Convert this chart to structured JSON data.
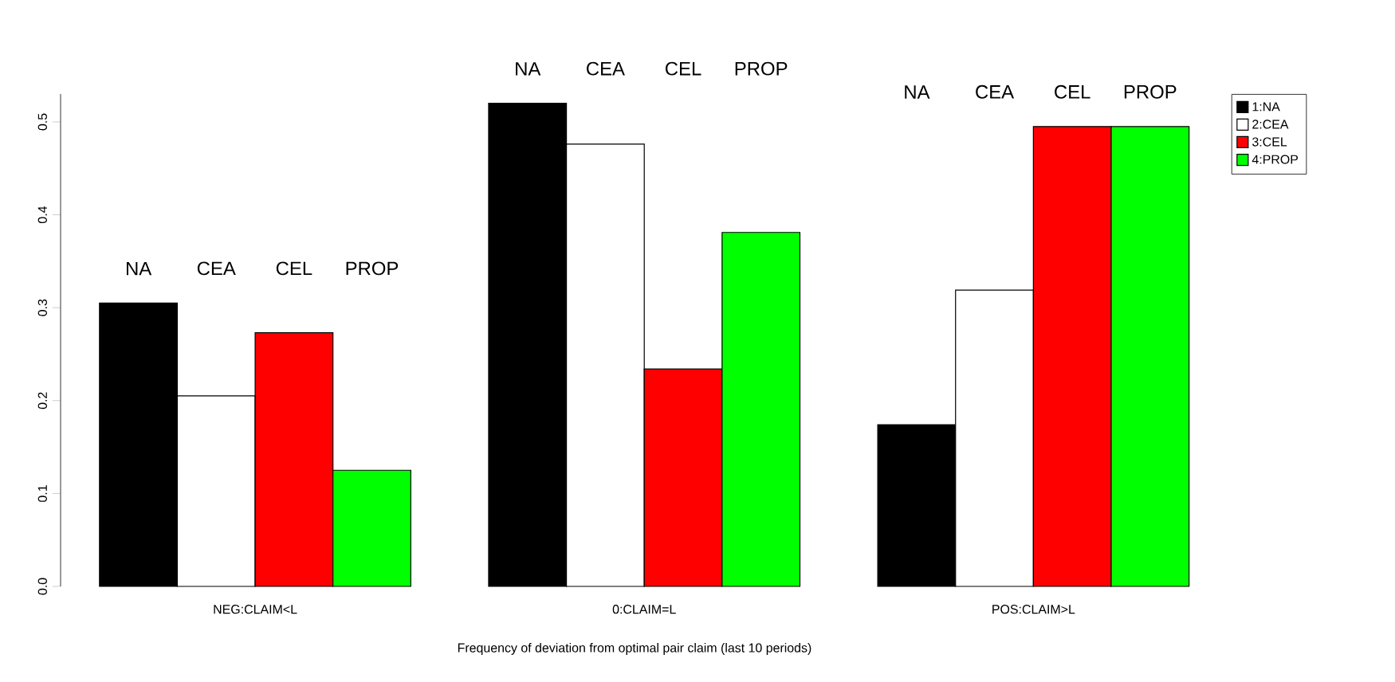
{
  "chart_data": {
    "type": "bar",
    "xlabel": "Frequency of deviation from optimal pair claim (last 10 periods)",
    "categories": [
      "NEG:CLAIM<L",
      "0:CLAIM=L",
      "POS:CLAIM>L"
    ],
    "series": [
      {
        "name": "1:NA",
        "color": "#000000",
        "values": [
          0.305,
          0.52,
          0.174
        ]
      },
      {
        "name": "2:CEA",
        "color": "#ffffff",
        "values": [
          0.205,
          0.476,
          0.319
        ]
      },
      {
        "name": "3:CEL",
        "color": "#ff0000",
        "values": [
          0.273,
          0.234,
          0.495
        ]
      },
      {
        "name": "4:PROP",
        "color": "#00ff00",
        "values": [
          0.125,
          0.381,
          0.495
        ]
      }
    ],
    "ylim": [
      0,
      0.53
    ],
    "yticks": [
      {
        "value": 0,
        "label": "0.0"
      },
      0.1,
      0.2,
      0.3,
      0.4,
      0.5
    ],
    "grid": false,
    "legend": "right",
    "annotations": [
      "NA",
      "CEA",
      "CEL",
      "PROP",
      "NA",
      "CEA",
      "CEL",
      "PROP",
      "NA",
      "CEA",
      "CEL",
      "PROP"
    ]
  }
}
